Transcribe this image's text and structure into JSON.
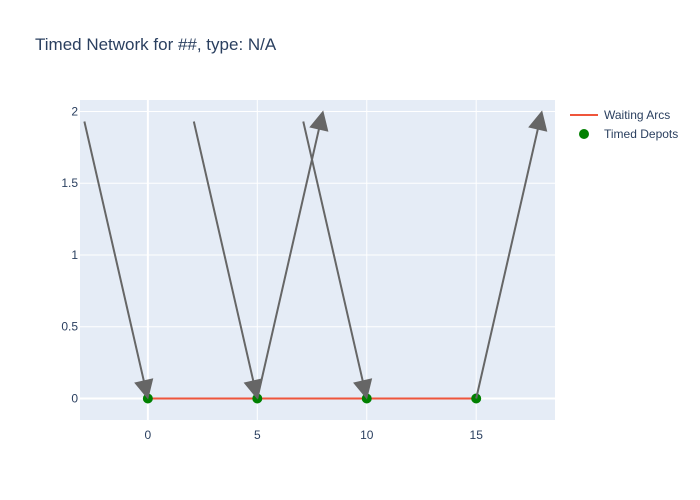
{
  "chart_data": {
    "type": "line",
    "title": "Timed Network for ##, type: N/A",
    "xlabel": "",
    "ylabel": "",
    "xlim": [
      -3.1,
      18.6
    ],
    "ylim": [
      -0.15,
      2.08
    ],
    "x_ticks": [
      0,
      5,
      10,
      15
    ],
    "y_ticks": [
      0,
      0.5,
      1,
      1.5,
      2
    ],
    "grid": true,
    "legend_position": "top-right",
    "series": [
      {
        "name": "Waiting Arcs",
        "kind": "line",
        "color": "#ef553b",
        "x": [
          0,
          5,
          10,
          15
        ],
        "y": [
          0,
          0,
          0,
          0
        ]
      },
      {
        "name": "Timed Depots",
        "kind": "markers",
        "color": "#008000",
        "x": [
          0,
          5,
          10,
          15
        ],
        "y": [
          0,
          0,
          0,
          0
        ]
      }
    ],
    "arrows": [
      {
        "from": [
          -2.9,
          1.93
        ],
        "to": [
          0,
          0
        ]
      },
      {
        "from": [
          2.1,
          1.93
        ],
        "to": [
          5,
          0
        ]
      },
      {
        "from": [
          7.1,
          1.93
        ],
        "to": [
          10,
          0
        ]
      },
      {
        "from": [
          5,
          0
        ],
        "to": [
          8,
          2
        ]
      },
      {
        "from": [
          15,
          0
        ],
        "to": [
          18,
          2
        ]
      }
    ],
    "arrow_color": "#666666"
  },
  "legend": {
    "waiting_arcs": "Waiting Arcs",
    "timed_depots": "Timed Depots"
  },
  "colors": {
    "plot_bg": "#e5ecf6",
    "grid": "#ffffff",
    "text": "#2a3f5f"
  }
}
